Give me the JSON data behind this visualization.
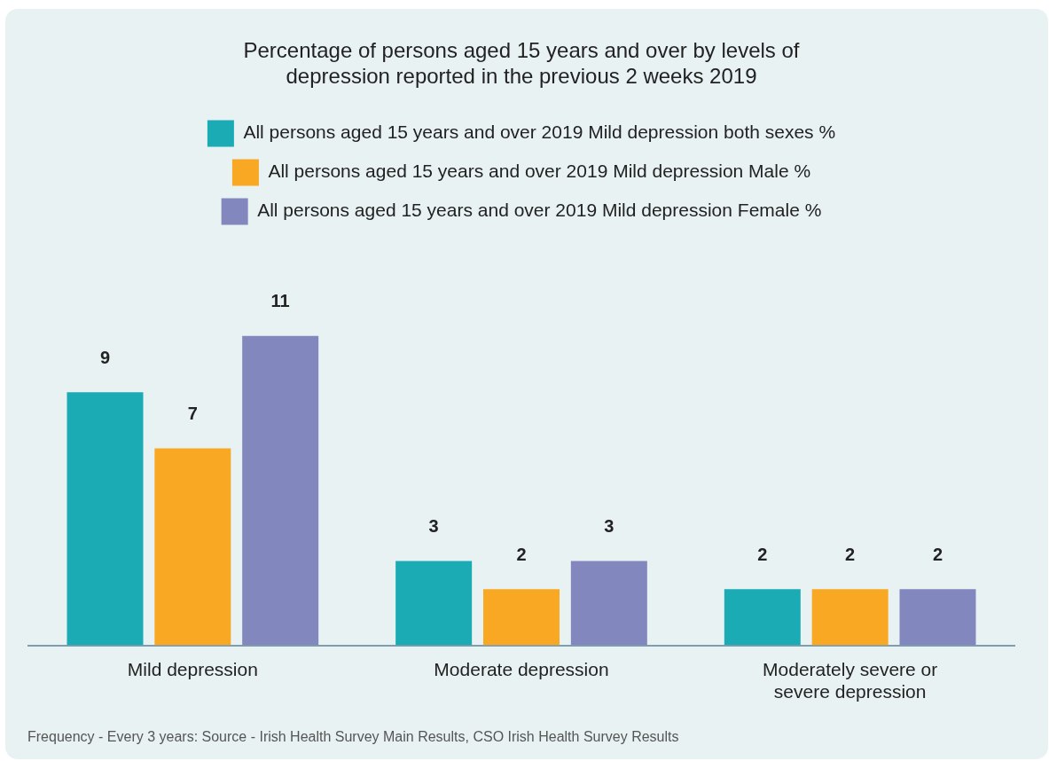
{
  "chart_data": {
    "type": "bar",
    "title": "Percentage of persons aged 15 years and over by levels of depression reported in the previous 2 weeks 2019",
    "categories": [
      "Mild depression",
      "Moderate depression",
      "Moderately severe or severe depression"
    ],
    "series": [
      {
        "name": "All persons aged 15 years and over 2019 Mild depression both sexes %",
        "color": "#1aabb5",
        "values": [
          9,
          3,
          2
        ]
      },
      {
        "name": "All persons aged 15 years and over 2019 Mild depression Male %",
        "color": "#f8a823",
        "values": [
          7,
          2,
          2
        ]
      },
      {
        "name": "All persons aged 15 years and over 2019 Mild depression Female %",
        "color": "#8287bd",
        "values": [
          11,
          3,
          2
        ]
      }
    ],
    "data_labels": true,
    "grid": false,
    "legend": "top",
    "annotations": [
      "Frequency - Every 3 years: Source - Irish Health Survey Main Results, CSO Irish Health Survey Results"
    ]
  }
}
